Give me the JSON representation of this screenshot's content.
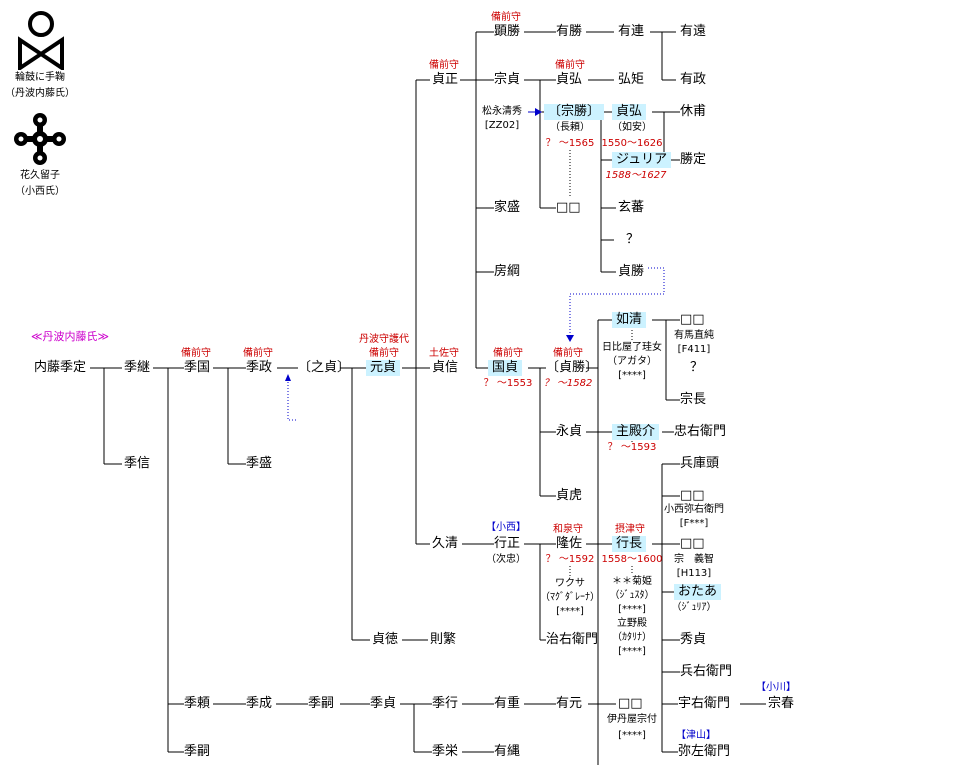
{
  "crests": [
    {
      "caption": "輪鼓に手鞠",
      "sub": "（丹波内藤氏）"
    },
    {
      "caption": "花久留子",
      "sub": "（小西氏）"
    }
  ],
  "heading": "≪丹波内藤氏≫",
  "titles": {
    "bizen": "備前守",
    "tamba": "丹波守護代",
    "tosa": "土佐守",
    "izumi": "和泉守",
    "settsu": "摂津守",
    "konishi": "【小西】",
    "ogawa": "【小川】",
    "tsuyama": "【津山】"
  },
  "people": {
    "suesada": "内藤季定",
    "suetsugu": "季継",
    "suenobu": "季信",
    "suekuni": "季国",
    "suemasa": "季政",
    "suemori": "季盛",
    "koresada": "〔之貞〕",
    "motosada": "元貞",
    "sadanobu": "貞信",
    "sadamasa": "貞正",
    "hisakiyo": "久清",
    "sadanori": "貞徳",
    "noriyoshi": "則繁",
    "akikatsu": "顕勝",
    "munesada": "宗貞",
    "ieMori": "家盛",
    "fusatsuna": "房綱",
    "kunisada": "国貞",
    "yukimasa": "行正",
    "arikatsu": "有勝",
    "sadahiro1": "貞弘",
    "munekatsu": "〔宗勝〕",
    "boxes1": "□□",
    "sadakatsu_b": "〔貞勝〕",
    "nagasada": "永貞",
    "sadatora": "貞虎",
    "ryusa": "隆佐",
    "jiemon": "治右衛門",
    "aritsura": "有連",
    "kōkyo": "弘矩",
    "sadahiro2": "貞弘",
    "julia": "ジュリア",
    "genban": "玄蕃",
    "unknown1": "？",
    "sadakatsu": "貞勝",
    "josei": "如清",
    "shunosuke": "主殿介",
    "yukinaga": "行長",
    "boxes2": "□□",
    "ariTo": "有遠",
    "arimasa": "有政",
    "kyūho": "休甫",
    "katsusada": "勝定",
    "boxes3": "□□",
    "unknown2": "？",
    "munenaga": "宗長",
    "chūemon": "忠右衛門",
    "hyogo": "兵庫頭",
    "boxes4": "□□",
    "boxes5": "□□",
    "otaa": "おたあ",
    "hidesada": "秀貞",
    "hyoemon": "兵右衛門",
    "uemon": "宇右衛門",
    "muneharu": "宗春",
    "yazaemon": "弥左衛門",
    "suetsugu2": "季頼",
    "suetsugu3": "季嗣",
    "suenari": "季成",
    "suetsugu4": "季嗣",
    "suesada2": "季貞",
    "sueyuki": "季行",
    "suehisa": "季栄",
    "arishige": "有重",
    "arimoto": "有元",
    "boxes6": "□□",
    "aritsuna": "有縄"
  },
  "notes": {
    "matsunaga": "松永清秀",
    "zz02": "[ZZ02]",
    "nagayori": "（長頼）",
    "q1565": "？ ～1565",
    "nyoan": "（如安）",
    "y1550": "1550～1626",
    "y1588": "1588～1627",
    "q1553": "？ ～1553",
    "q1582": "？ ～1582",
    "q1592": "？ ～1592",
    "q1593": "？ ～1593",
    "y1558": "1558～1600",
    "jichu": "（次忠）",
    "hibiya": "日比屋了珪女",
    "agata": "（アガタ）",
    "stars1": "[****]",
    "arima": "有馬直純",
    "f411": "[F411]",
    "wakusa": "ワクサ",
    "magdalena": "（ﾏｸﾞﾀﾞﾚｰﾅ）",
    "stars2": "[****]",
    "kikuhime": "＊＊菊姫",
    "justa": "（ｼﾞｭｽﾀ）",
    "stars3": "[****]",
    "tachino": "立野殿",
    "catalina": "（ｶﾀﾘﾅ）",
    "stars4": "[****]",
    "konishi_ya": "小西弥右衛門",
    "fstar": "[F***]",
    "so_yoshitomo": "宗　義智",
    "h113": "[H113]",
    "julia2": "（ｼﾞｭﾘｱ）",
    "itamiya": "伊丹屋宗付",
    "stars5": "[****]"
  }
}
